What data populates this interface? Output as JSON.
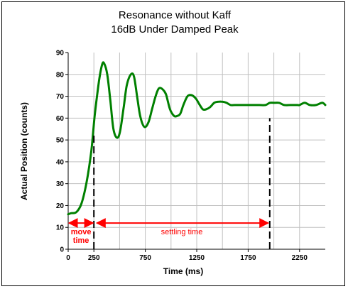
{
  "chart_data": {
    "type": "line",
    "title": "Resonance without Kaff",
    "subtitle": "16dB Under Damped Peak",
    "xlabel": "Time (ms)",
    "ylabel": "Actual Position (counts)",
    "xlim": [
      0,
      2500
    ],
    "ylim": [
      0,
      90
    ],
    "x_ticks": [
      0,
      250,
      750,
      1250,
      1750,
      2250
    ],
    "y_ticks": [
      0,
      10,
      20,
      30,
      40,
      50,
      60,
      70,
      80,
      90
    ],
    "x_grid_lines": [
      250,
      500,
      750,
      1000,
      1250,
      1500,
      1750,
      2000,
      2250
    ],
    "y_grid_lines": [
      10,
      20,
      30,
      40,
      50,
      60,
      70,
      80
    ],
    "grid": true,
    "series_color": "#008000",
    "annotation_color": "#ff0000",
    "series": [
      {
        "name": "",
        "x": [
          0,
          30,
          80,
          130,
          180,
          225,
          260,
          300,
          330,
          350,
          380,
          410,
          440,
          475,
          505,
          540,
          570,
          610,
          640,
          670,
          700,
          740,
          780,
          815,
          850,
          880,
          910,
          950,
          990,
          1030,
          1060,
          1090,
          1120,
          1160,
          1200,
          1240,
          1280,
          1310,
          1340,
          1380,
          1420,
          1460,
          1500,
          1540,
          1580,
          1620,
          1680,
          1740,
          1800,
          1860,
          1920,
          1960,
          2000,
          2050,
          2100,
          2160,
          2230,
          2250,
          2300,
          2350,
          2410,
          2470,
          2500
        ],
        "y": [
          16,
          16.5,
          17,
          21,
          31,
          45,
          62,
          77,
          84.5,
          85,
          80,
          68,
          55,
          51,
          54,
          65,
          75,
          80,
          79,
          70,
          61,
          56,
          58,
          64,
          70,
          73.5,
          73.5,
          71,
          64,
          61,
          61,
          62,
          66,
          70,
          70.5,
          69,
          66,
          64,
          64,
          65,
          67,
          67.5,
          67.5,
          67,
          66,
          66,
          66,
          66,
          66,
          66,
          66,
          67,
          67,
          67,
          66,
          66,
          66,
          66,
          67,
          66,
          66,
          67,
          66
        ]
      }
    ],
    "markers": [
      {
        "x": 250,
        "y_from": 0,
        "y_to": 53
      },
      {
        "x": 1960,
        "y_from": 0,
        "y_to": 60
      }
    ],
    "annotations": {
      "move_time": {
        "line1": "move",
        "line2": "time",
        "x_from": 0,
        "x_to": 250,
        "y": 12
      },
      "settling_time": {
        "label": "settling time",
        "x_from": 250,
        "x_to": 1960,
        "y": 12
      }
    }
  }
}
